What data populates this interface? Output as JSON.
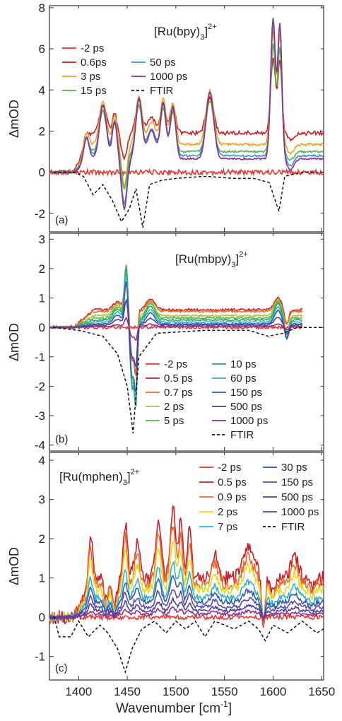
{
  "figure": {
    "xlabel": "Wavenumber [cm",
    "xlabel_sup": "-1",
    "xlabel_tail": "]"
  },
  "chart_data": [
    {
      "type": "line",
      "panel_label": "(a)",
      "compound": {
        "main": "[Ru(bpy)",
        "sub": "3",
        "close": "]",
        "sup": "2+"
      },
      "ylabel": "ΔmOD",
      "xlim": [
        1370,
        1652
      ],
      "ylim": [
        -2.9,
        8.1
      ],
      "xticks": [
        1400,
        1450,
        1500,
        1550,
        1600,
        1650
      ],
      "yticks": [
        -2,
        0,
        2,
        4,
        6,
        8
      ],
      "legend_position": "top-left",
      "bands": [
        [
          1408,
          1.2,
          4
        ],
        [
          1425,
          2.5,
          5
        ],
        [
          1437,
          1.7,
          3.5
        ],
        [
          1447,
          -2.3,
          4
        ],
        [
          1462,
          2.8,
          4.5
        ],
        [
          1475,
          1.3,
          6
        ],
        [
          1487,
          2.6,
          4
        ],
        [
          1497,
          2.4,
          4
        ],
        [
          1535,
          3.1,
          5.5
        ],
        [
          1600,
          6.5,
          3.5
        ],
        [
          1607,
          6.2,
          3
        ],
        [
          1618,
          -0.5,
          5
        ]
      ],
      "ftir": [
        [
          1375,
          0
        ],
        [
          1395,
          0
        ],
        [
          1405,
          -0.2
        ],
        [
          1415,
          -1.1
        ],
        [
          1425,
          -0.6
        ],
        [
          1435,
          -1.4
        ],
        [
          1444,
          -2.4
        ],
        [
          1452,
          -1.8
        ],
        [
          1459,
          -0.8
        ],
        [
          1466,
          -2.7
        ],
        [
          1473,
          -0.6
        ],
        [
          1485,
          -0.4
        ],
        [
          1500,
          -0.3
        ],
        [
          1530,
          -0.2
        ],
        [
          1560,
          -0.3
        ],
        [
          1580,
          -0.3
        ],
        [
          1596,
          -0.5
        ],
        [
          1606,
          -1.9
        ],
        [
          1612,
          -0.2
        ],
        [
          1630,
          0
        ],
        [
          1650,
          0
        ]
      ],
      "series": [
        {
          "name": "-2 ps",
          "color": "#e8372e",
          "scale": 0,
          "baseline": 0,
          "noise": 0.12
        },
        {
          "name": "0.6ps",
          "color": "#c8202a",
          "scale": 0.55,
          "baseline": 1.9,
          "noise": 0.1
        },
        {
          "name": "3  ps",
          "color": "#f0a020",
          "scale": 0.85,
          "baseline": 1.35,
          "noise": 0.06
        },
        {
          "name": "15 ps",
          "color": "#55b64a",
          "scale": 0.8,
          "baseline": 1.0,
          "noise": 0.05
        },
        {
          "name": "50     ps",
          "color": "#3d8fd4",
          "scale": 1.0,
          "baseline": 0.8,
          "noise": 0.04
        },
        {
          "name": "1000 ps",
          "color": "#8a2f8c",
          "scale": 1.05,
          "baseline": 0.65,
          "noise": 0.04
        },
        {
          "name": "FTIR",
          "color": "#111111",
          "dashed": true,
          "ftir": true
        }
      ]
    },
    {
      "type": "line",
      "panel_label": "(b)",
      "compound": {
        "main": "[Ru(mbpy)",
        "sub": "3",
        "close": "]",
        "sup": "2+"
      },
      "ylabel": "ΔmOD",
      "xlim": [
        1370,
        1652
      ],
      "ylim": [
        -4.2,
        3.2
      ],
      "xticks": [
        1400,
        1450,
        1500,
        1550,
        1600,
        1650
      ],
      "yticks": [
        -4,
        -3,
        -2,
        -1,
        0,
        1,
        2,
        3
      ],
      "legend_position": "bottom-center",
      "end_x": 1630,
      "bands": [
        [
          1440,
          0.4,
          6
        ],
        [
          1449,
          1.9,
          2.5
        ],
        [
          1455,
          -2.4,
          3
        ],
        [
          1459,
          -2.7,
          2
        ],
        [
          1474,
          0.5,
          6
        ],
        [
          1605,
          0.6,
          5
        ],
        [
          1614,
          -0.7,
          3
        ]
      ],
      "ftir": [
        [
          1375,
          0
        ],
        [
          1400,
          -0.1
        ],
        [
          1425,
          -0.3
        ],
        [
          1440,
          -0.9
        ],
        [
          1450,
          -2.0
        ],
        [
          1456,
          -3.6
        ],
        [
          1462,
          -1.0
        ],
        [
          1480,
          -0.2
        ],
        [
          1530,
          -0.1
        ],
        [
          1555,
          -0.1
        ],
        [
          1575,
          -0.1
        ],
        [
          1595,
          -0.3
        ],
        [
          1610,
          -0.2
        ],
        [
          1625,
          0
        ],
        [
          1652,
          0
        ]
      ],
      "series": [
        {
          "name": "-2  ps",
          "color": "#e8372e",
          "scale": 0,
          "baseline": 0,
          "noise": 0.05
        },
        {
          "name": "0.5  ps",
          "color": "#c8202a",
          "scale": 0.7,
          "baseline": 0.6,
          "noise": 0.04
        },
        {
          "name": "0.7  ps",
          "color": "#ee6a2a",
          "scale": 0.7,
          "baseline": 0.55,
          "noise": 0.04
        },
        {
          "name": "2    ps",
          "color": "#9ccc3a",
          "scale": 0.9,
          "baseline": 0.4,
          "noise": 0.03
        },
        {
          "name": "5    ps",
          "color": "#55b64a",
          "scale": 0.95,
          "baseline": 0.32,
          "noise": 0.03
        },
        {
          "name": "10    ps",
          "color": "#2eaa6a",
          "scale": 0.95,
          "baseline": 0.25,
          "noise": 0.03
        },
        {
          "name": "60    ps",
          "color": "#35b0c8",
          "scale": 0.85,
          "baseline": 0.18,
          "noise": 0.02
        },
        {
          "name": "150  ps",
          "color": "#2f5ca8",
          "scale": 0.75,
          "baseline": 0.12,
          "noise": 0.02
        },
        {
          "name": "500  ps",
          "color": "#4b3f9a",
          "scale": 0.45,
          "baseline": 0.08,
          "noise": 0.02
        },
        {
          "name": "1000 ps",
          "color": "#8a2f8c",
          "scale": 0.15,
          "baseline": 0.03,
          "noise": 0.02
        },
        {
          "name": "FTIR",
          "color": "#111111",
          "dashed": true,
          "ftir": true
        }
      ]
    },
    {
      "type": "line",
      "panel_label": "(c)",
      "compound": {
        "main": "[Ru(mphen)",
        "sub": "3",
        "close": "]",
        "sup": "2+"
      },
      "ylabel": "ΔmOD",
      "xlim": [
        1370,
        1652
      ],
      "ylim": [
        -1.6,
        4.2
      ],
      "xticks": [
        1400,
        1450,
        1500,
        1550,
        1600,
        1650
      ],
      "yticks": [
        -1,
        0,
        1,
        2,
        3,
        4
      ],
      "legend_position": "top-right",
      "bands": [
        [
          1412,
          1.2,
          3
        ],
        [
          1428,
          -0.6,
          3
        ],
        [
          1437,
          -0.8,
          3
        ],
        [
          1448,
          1.4,
          3
        ],
        [
          1460,
          0.9,
          4
        ],
        [
          1482,
          1.5,
          4
        ],
        [
          1497,
          1.8,
          4
        ],
        [
          1505,
          1.4,
          3
        ],
        [
          1514,
          1.2,
          3
        ],
        [
          1540,
          0.6,
          5
        ],
        [
          1575,
          0.8,
          8
        ],
        [
          1590,
          -1.2,
          2.5
        ],
        [
          1600,
          -0.3,
          4
        ],
        [
          1622,
          0.6,
          5
        ],
        [
          1640,
          -0.3,
          3
        ]
      ],
      "ftir": [
        [
          1375,
          0
        ],
        [
          1380,
          -0.5
        ],
        [
          1392,
          -0.5
        ],
        [
          1400,
          -0.1
        ],
        [
          1410,
          -0.5
        ],
        [
          1422,
          -0.2
        ],
        [
          1430,
          -0.4
        ],
        [
          1440,
          -0.8
        ],
        [
          1448,
          -1.4
        ],
        [
          1455,
          -0.8
        ],
        [
          1465,
          -0.3
        ],
        [
          1478,
          -0.1
        ],
        [
          1490,
          -0.4
        ],
        [
          1500,
          -0.1
        ],
        [
          1510,
          -0.3
        ],
        [
          1520,
          -0.1
        ],
        [
          1530,
          -0.5
        ],
        [
          1540,
          -0.1
        ],
        [
          1560,
          -0.3
        ],
        [
          1575,
          -0.1
        ],
        [
          1585,
          -0.3
        ],
        [
          1592,
          -0.6
        ],
        [
          1600,
          -0.2
        ],
        [
          1615,
          -0.4
        ],
        [
          1630,
          -0.1
        ],
        [
          1645,
          -0.4
        ],
        [
          1652,
          -0.3
        ]
      ],
      "series": [
        {
          "name": "-2 ps",
          "color": "#e8372e",
          "scale": 0,
          "baseline": 0,
          "noise": 0.06
        },
        {
          "name": "0.5 ps",
          "color": "#c8202a",
          "scale": 1.0,
          "baseline": 1.0,
          "noise": 0.18
        },
        {
          "name": "0.9 ps",
          "color": "#ee6a2a",
          "scale": 0.85,
          "baseline": 0.85,
          "noise": 0.15
        },
        {
          "name": "2    ps",
          "color": "#e8d820",
          "scale": 0.7,
          "baseline": 0.7,
          "noise": 0.12
        },
        {
          "name": "7    ps",
          "color": "#35b0c8",
          "scale": 0.5,
          "baseline": 0.5,
          "noise": 0.08
        },
        {
          "name": "30    ps",
          "color": "#2f5ca8",
          "scale": 0.38,
          "baseline": 0.38,
          "noise": 0.06
        },
        {
          "name": "150  ps",
          "color": "#5a4aa8",
          "scale": 0.26,
          "baseline": 0.26,
          "noise": 0.05
        },
        {
          "name": "500  ps",
          "color": "#4b3f9a",
          "scale": 0.16,
          "baseline": 0.16,
          "noise": 0.04
        },
        {
          "name": "1000 ps",
          "color": "#8a2f8c",
          "scale": 0.08,
          "baseline": 0.08,
          "noise": 0.04
        },
        {
          "name": "FTIR",
          "color": "#111111",
          "dashed": true,
          "ftir": true
        }
      ]
    }
  ]
}
